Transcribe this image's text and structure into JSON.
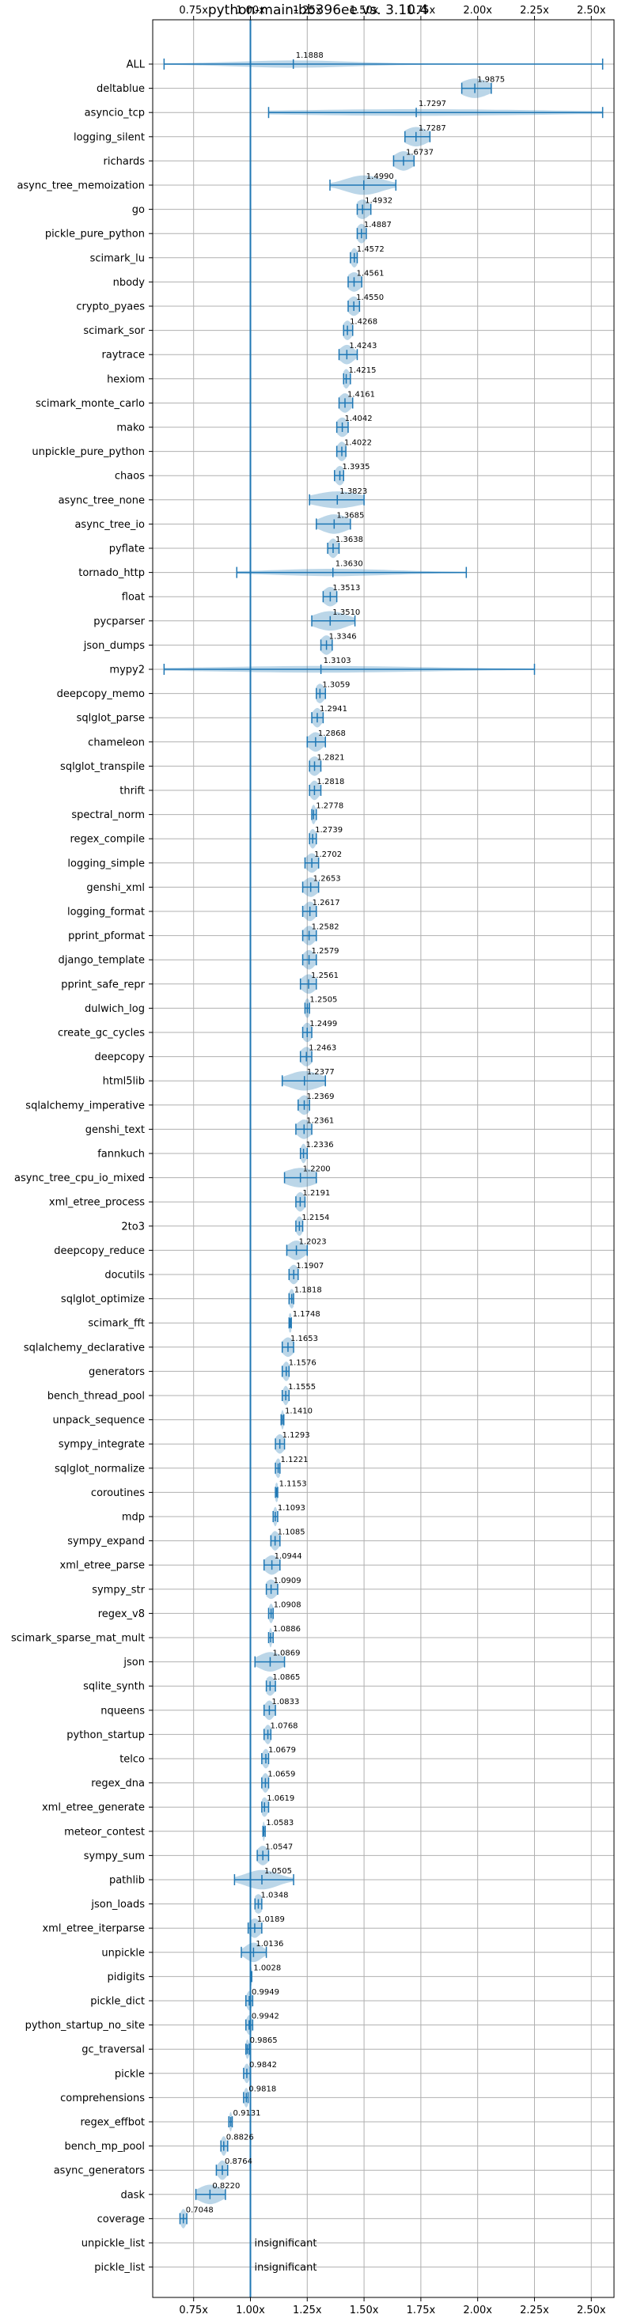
{
  "chart_data": {
    "type": "violin",
    "title": "python-main-bb396ee vs. 3.10.4",
    "x_ticks": [
      "0.75x",
      "1.00x",
      "1.25x",
      "1.50x",
      "1.75x",
      "2.00x",
      "2.25x",
      "2.50x"
    ],
    "x_tick_values": [
      0.75,
      1.0,
      1.25,
      1.5,
      1.75,
      2.0,
      2.25,
      2.5
    ],
    "xlim": [
      0.57,
      2.6
    ],
    "reference_line": 1.0,
    "grid": true,
    "insignificant_label": "insignificant",
    "benchmarks": [
      {
        "name": "ALL",
        "value": 1.1888,
        "label": "1.1888",
        "min": 0.62,
        "max": 2.55,
        "spread": 0.25
      },
      {
        "name": "deltablue",
        "value": 1.9875,
        "label": "1.9875",
        "min": 1.93,
        "max": 2.06,
        "spread": 0.06
      },
      {
        "name": "asyncio_tcp",
        "value": 1.7297,
        "label": "1.7297",
        "min": 1.08,
        "max": 2.55,
        "spread": 0.55
      },
      {
        "name": "logging_silent",
        "value": 1.7287,
        "label": "1.7287",
        "min": 1.68,
        "max": 1.79,
        "spread": 0.05
      },
      {
        "name": "richards",
        "value": 1.6737,
        "label": "1.6737",
        "min": 1.63,
        "max": 1.72,
        "spread": 0.04
      },
      {
        "name": "async_tree_memoization",
        "value": 1.499,
        "label": "1.4990",
        "min": 1.35,
        "max": 1.64,
        "spread": 0.08
      },
      {
        "name": "go",
        "value": 1.4932,
        "label": "1.4932",
        "min": 1.47,
        "max": 1.53,
        "spread": 0.03
      },
      {
        "name": "pickle_pure_python",
        "value": 1.4887,
        "label": "1.4887",
        "min": 1.47,
        "max": 1.51,
        "spread": 0.02
      },
      {
        "name": "scimark_lu",
        "value": 1.4572,
        "label": "1.4572",
        "min": 1.44,
        "max": 1.47,
        "spread": 0.015
      },
      {
        "name": "nbody",
        "value": 1.4561,
        "label": "1.4561",
        "min": 1.43,
        "max": 1.49,
        "spread": 0.03
      },
      {
        "name": "crypto_pyaes",
        "value": 1.455,
        "label": "1.4550",
        "min": 1.43,
        "max": 1.48,
        "spread": 0.025
      },
      {
        "name": "scimark_sor",
        "value": 1.4268,
        "label": "1.4268",
        "min": 1.41,
        "max": 1.45,
        "spread": 0.02
      },
      {
        "name": "raytrace",
        "value": 1.4243,
        "label": "1.4243",
        "min": 1.39,
        "max": 1.47,
        "spread": 0.03
      },
      {
        "name": "hexiom",
        "value": 1.4215,
        "label": "1.4215",
        "min": 1.41,
        "max": 1.44,
        "spread": 0.015
      },
      {
        "name": "scimark_monte_carlo",
        "value": 1.4161,
        "label": "1.4161",
        "min": 1.39,
        "max": 1.45,
        "spread": 0.025
      },
      {
        "name": "mako",
        "value": 1.4042,
        "label": "1.4042",
        "min": 1.38,
        "max": 1.43,
        "spread": 0.025
      },
      {
        "name": "unpickle_pure_python",
        "value": 1.4022,
        "label": "1.4022",
        "min": 1.38,
        "max": 1.42,
        "spread": 0.02
      },
      {
        "name": "chaos",
        "value": 1.3935,
        "label": "1.3935",
        "min": 1.37,
        "max": 1.41,
        "spread": 0.02
      },
      {
        "name": "async_tree_none",
        "value": 1.3823,
        "label": "1.3823",
        "min": 1.26,
        "max": 1.5,
        "spread": 0.1
      },
      {
        "name": "async_tree_io",
        "value": 1.3685,
        "label": "1.3685",
        "min": 1.29,
        "max": 1.44,
        "spread": 0.06
      },
      {
        "name": "pyflate",
        "value": 1.3638,
        "label": "1.3638",
        "min": 1.34,
        "max": 1.39,
        "spread": 0.02
      },
      {
        "name": "tornado_http",
        "value": 1.363,
        "label": "1.3630",
        "min": 0.94,
        "max": 1.95,
        "spread": 0.25
      },
      {
        "name": "float",
        "value": 1.3513,
        "label": "1.3513",
        "min": 1.32,
        "max": 1.38,
        "spread": 0.03
      },
      {
        "name": "pycparser",
        "value": 1.351,
        "label": "1.3510",
        "min": 1.27,
        "max": 1.46,
        "spread": 0.07
      },
      {
        "name": "json_dumps",
        "value": 1.3346,
        "label": "1.3346",
        "min": 1.31,
        "max": 1.36,
        "spread": 0.025
      },
      {
        "name": "mypy2",
        "value": 1.3103,
        "label": "1.3103",
        "min": 0.62,
        "max": 2.25,
        "spread": 0.45
      },
      {
        "name": "deepcopy_memo",
        "value": 1.3059,
        "label": "1.3059",
        "min": 1.29,
        "max": 1.33,
        "spread": 0.02
      },
      {
        "name": "sqlglot_parse",
        "value": 1.2941,
        "label": "1.2941",
        "min": 1.27,
        "max": 1.32,
        "spread": 0.02
      },
      {
        "name": "chameleon",
        "value": 1.2868,
        "label": "1.2868",
        "min": 1.25,
        "max": 1.33,
        "spread": 0.03
      },
      {
        "name": "sqlglot_transpile",
        "value": 1.2821,
        "label": "1.2821",
        "min": 1.26,
        "max": 1.31,
        "spread": 0.025
      },
      {
        "name": "thrift",
        "value": 1.2818,
        "label": "1.2818",
        "min": 1.26,
        "max": 1.31,
        "spread": 0.02
      },
      {
        "name": "spectral_norm",
        "value": 1.2778,
        "label": "1.2778",
        "min": 1.27,
        "max": 1.29,
        "spread": 0.01
      },
      {
        "name": "regex_compile",
        "value": 1.2739,
        "label": "1.2739",
        "min": 1.26,
        "max": 1.29,
        "spread": 0.015
      },
      {
        "name": "logging_simple",
        "value": 1.2702,
        "label": "1.2702",
        "min": 1.24,
        "max": 1.3,
        "spread": 0.025
      },
      {
        "name": "genshi_xml",
        "value": 1.2653,
        "label": "1.2653",
        "min": 1.23,
        "max": 1.3,
        "spread": 0.03
      },
      {
        "name": "logging_format",
        "value": 1.2617,
        "label": "1.2617",
        "min": 1.23,
        "max": 1.29,
        "spread": 0.025
      },
      {
        "name": "pprint_pformat",
        "value": 1.2582,
        "label": "1.2582",
        "min": 1.23,
        "max": 1.29,
        "spread": 0.025
      },
      {
        "name": "django_template",
        "value": 1.2579,
        "label": "1.2579",
        "min": 1.23,
        "max": 1.29,
        "spread": 0.025
      },
      {
        "name": "pprint_safe_repr",
        "value": 1.2561,
        "label": "1.2561",
        "min": 1.22,
        "max": 1.29,
        "spread": 0.03
      },
      {
        "name": "dulwich_log",
        "value": 1.2505,
        "label": "1.2505",
        "min": 1.24,
        "max": 1.26,
        "spread": 0.012
      },
      {
        "name": "create_gc_cycles",
        "value": 1.2499,
        "label": "1.2499",
        "min": 1.23,
        "max": 1.27,
        "spread": 0.02
      },
      {
        "name": "deepcopy",
        "value": 1.2463,
        "label": "1.2463",
        "min": 1.22,
        "max": 1.27,
        "spread": 0.025
      },
      {
        "name": "html5lib",
        "value": 1.2377,
        "label": "1.2377",
        "min": 1.14,
        "max": 1.33,
        "spread": 0.07
      },
      {
        "name": "sqlalchemy_imperative",
        "value": 1.2369,
        "label": "1.2369",
        "min": 1.21,
        "max": 1.26,
        "spread": 0.025
      },
      {
        "name": "genshi_text",
        "value": 1.2361,
        "label": "1.2361",
        "min": 1.2,
        "max": 1.27,
        "spread": 0.03
      },
      {
        "name": "fannkuch",
        "value": 1.2336,
        "label": "1.2336",
        "min": 1.22,
        "max": 1.25,
        "spread": 0.012
      },
      {
        "name": "async_tree_cpu_io_mixed",
        "value": 1.22,
        "label": "1.2200",
        "min": 1.15,
        "max": 1.29,
        "spread": 0.07
      },
      {
        "name": "xml_etree_process",
        "value": 1.2191,
        "label": "1.2191",
        "min": 1.2,
        "max": 1.24,
        "spread": 0.02
      },
      {
        "name": "2to3",
        "value": 1.2154,
        "label": "1.2154",
        "min": 1.2,
        "max": 1.23,
        "spread": 0.015
      },
      {
        "name": "deepcopy_reduce",
        "value": 1.2023,
        "label": "1.2023",
        "min": 1.16,
        "max": 1.25,
        "spread": 0.035
      },
      {
        "name": "docutils",
        "value": 1.1907,
        "label": "1.1907",
        "min": 1.17,
        "max": 1.21,
        "spread": 0.02
      },
      {
        "name": "sqlglot_optimize",
        "value": 1.1818,
        "label": "1.1818",
        "min": 1.17,
        "max": 1.19,
        "spread": 0.012
      },
      {
        "name": "scimark_fft",
        "value": 1.1748,
        "label": "1.1748",
        "min": 1.17,
        "max": 1.18,
        "spread": 0.008
      },
      {
        "name": "sqlalchemy_declarative",
        "value": 1.1653,
        "label": "1.1653",
        "min": 1.14,
        "max": 1.19,
        "spread": 0.025
      },
      {
        "name": "generators",
        "value": 1.1576,
        "label": "1.1576",
        "min": 1.14,
        "max": 1.17,
        "spread": 0.015
      },
      {
        "name": "bench_thread_pool",
        "value": 1.1555,
        "label": "1.1555",
        "min": 1.14,
        "max": 1.17,
        "spread": 0.012
      },
      {
        "name": "unpack_sequence",
        "value": 1.141,
        "label": "1.1410",
        "min": 1.135,
        "max": 1.147,
        "spread": 0.006
      },
      {
        "name": "sympy_integrate",
        "value": 1.1293,
        "label": "1.1293",
        "min": 1.11,
        "max": 1.15,
        "spread": 0.02
      },
      {
        "name": "sqlglot_normalize",
        "value": 1.1221,
        "label": "1.1221",
        "min": 1.11,
        "max": 1.13,
        "spread": 0.012
      },
      {
        "name": "coroutines",
        "value": 1.1153,
        "label": "1.1153",
        "min": 1.11,
        "max": 1.12,
        "spread": 0.008
      },
      {
        "name": "mdp",
        "value": 1.1093,
        "label": "1.1093",
        "min": 1.1,
        "max": 1.12,
        "spread": 0.008
      },
      {
        "name": "sympy_expand",
        "value": 1.1085,
        "label": "1.1085",
        "min": 1.09,
        "max": 1.13,
        "spread": 0.018
      },
      {
        "name": "xml_etree_parse",
        "value": 1.0944,
        "label": "1.0944",
        "min": 1.06,
        "max": 1.13,
        "spread": 0.03
      },
      {
        "name": "sympy_str",
        "value": 1.0909,
        "label": "1.0909",
        "min": 1.07,
        "max": 1.12,
        "spread": 0.025
      },
      {
        "name": "regex_v8",
        "value": 1.0908,
        "label": "1.0908",
        "min": 1.08,
        "max": 1.1,
        "spread": 0.01
      },
      {
        "name": "scimark_sparse_mat_mult",
        "value": 1.0886,
        "label": "1.0886",
        "min": 1.08,
        "max": 1.1,
        "spread": 0.006
      },
      {
        "name": "json",
        "value": 1.0869,
        "label": "1.0869",
        "min": 1.02,
        "max": 1.15,
        "spread": 0.05
      },
      {
        "name": "sqlite_synth",
        "value": 1.0865,
        "label": "1.0865",
        "min": 1.07,
        "max": 1.11,
        "spread": 0.02
      },
      {
        "name": "nqueens",
        "value": 1.0833,
        "label": "1.0833",
        "min": 1.06,
        "max": 1.11,
        "spread": 0.02
      },
      {
        "name": "python_startup",
        "value": 1.0768,
        "label": "1.0768",
        "min": 1.06,
        "max": 1.09,
        "spread": 0.015
      },
      {
        "name": "telco",
        "value": 1.0679,
        "label": "1.0679",
        "min": 1.05,
        "max": 1.08,
        "spread": 0.015
      },
      {
        "name": "regex_dna",
        "value": 1.0659,
        "label": "1.0659",
        "min": 1.05,
        "max": 1.08,
        "spread": 0.015
      },
      {
        "name": "xml_etree_generate",
        "value": 1.0619,
        "label": "1.0619",
        "min": 1.05,
        "max": 1.08,
        "spread": 0.015
      },
      {
        "name": "meteor_contest",
        "value": 1.0583,
        "label": "1.0583",
        "min": 1.055,
        "max": 1.065,
        "spread": 0.005
      },
      {
        "name": "sympy_sum",
        "value": 1.0547,
        "label": "1.0547",
        "min": 1.03,
        "max": 1.08,
        "spread": 0.025
      },
      {
        "name": "pathlib",
        "value": 1.0505,
        "label": "1.0505",
        "min": 0.93,
        "max": 1.19,
        "spread": 0.07
      },
      {
        "name": "json_loads",
        "value": 1.0348,
        "label": "1.0348",
        "min": 1.02,
        "max": 1.05,
        "spread": 0.02
      },
      {
        "name": "xml_etree_iterparse",
        "value": 1.0189,
        "label": "1.0189",
        "min": 0.99,
        "max": 1.05,
        "spread": 0.025
      },
      {
        "name": "unpickle",
        "value": 1.0136,
        "label": "1.0136",
        "min": 0.96,
        "max": 1.07,
        "spread": 0.035
      },
      {
        "name": "pidigits",
        "value": 1.0028,
        "label": "1.0028",
        "min": 1.0,
        "max": 1.006,
        "spread": 0.004
      },
      {
        "name": "pickle_dict",
        "value": 0.9949,
        "label": "0.9949",
        "min": 0.98,
        "max": 1.01,
        "spread": 0.012
      },
      {
        "name": "python_startup_no_site",
        "value": 0.9942,
        "label": "0.9942",
        "min": 0.98,
        "max": 1.01,
        "spread": 0.012
      },
      {
        "name": "gc_traversal",
        "value": 0.9865,
        "label": "0.9865",
        "min": 0.98,
        "max": 0.995,
        "spread": 0.008
      },
      {
        "name": "pickle",
        "value": 0.9842,
        "label": "0.9842",
        "min": 0.97,
        "max": 1.0,
        "spread": 0.012
      },
      {
        "name": "comprehensions",
        "value": 0.9818,
        "label": "0.9818",
        "min": 0.97,
        "max": 0.99,
        "spread": 0.01
      },
      {
        "name": "regex_effbot",
        "value": 0.9131,
        "label": "0.9131",
        "min": 0.905,
        "max": 0.92,
        "spread": 0.006
      },
      {
        "name": "bench_mp_pool",
        "value": 0.8826,
        "label": "0.8826",
        "min": 0.87,
        "max": 0.9,
        "spread": 0.012
      },
      {
        "name": "async_generators",
        "value": 0.8764,
        "label": "0.8764",
        "min": 0.85,
        "max": 0.9,
        "spread": 0.02
      },
      {
        "name": "dask",
        "value": 0.822,
        "label": "0.8220",
        "min": 0.76,
        "max": 0.89,
        "spread": 0.05
      },
      {
        "name": "coverage",
        "value": 0.7048,
        "label": "0.7048",
        "min": 0.69,
        "max": 0.72,
        "spread": 0.012
      },
      {
        "name": "unpickle_list",
        "value": null,
        "label": "",
        "insignificant": true
      },
      {
        "name": "pickle_list",
        "value": null,
        "label": "",
        "insignificant": true
      }
    ]
  }
}
